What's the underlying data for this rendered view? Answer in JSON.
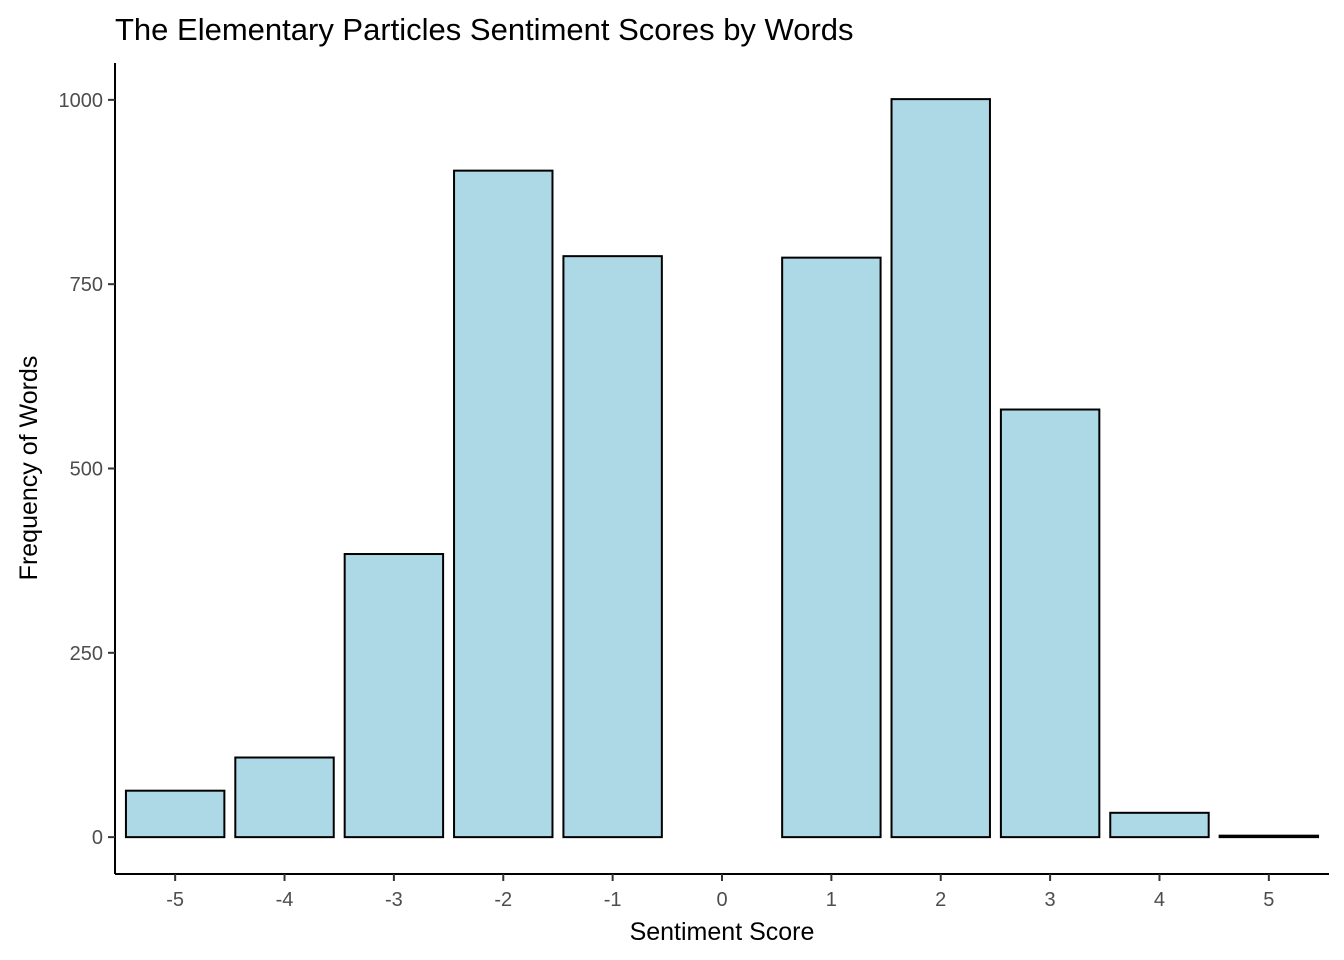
{
  "chart_data": {
    "type": "bar",
    "title": "The Elementary Particles Sentiment Scores by Words",
    "xlabel": "Sentiment Score",
    "ylabel": "Frequency of Words",
    "categories": [
      "-5",
      "-4",
      "-3",
      "-2",
      "-1",
      "0",
      "1",
      "2",
      "3",
      "4",
      "5"
    ],
    "x": [
      -5,
      -4,
      -3,
      -2,
      -1,
      0,
      1,
      2,
      3,
      4,
      5
    ],
    "values": [
      63,
      108,
      384,
      904,
      788,
      0,
      786,
      1001,
      580,
      33,
      2
    ],
    "xlim": [
      -5.55,
      5.55
    ],
    "ylim": [
      -50,
      1050
    ],
    "yticks": [
      0,
      250,
      500,
      750,
      1000
    ],
    "ytick_labels": [
      "0",
      "250",
      "500",
      "750",
      "1000"
    ],
    "xticks": [
      -5,
      -4,
      -3,
      -2,
      -1,
      0,
      1,
      2,
      3,
      4,
      5
    ],
    "xtick_labels": [
      "-5",
      "-4",
      "-3",
      "-2",
      "-1",
      "0",
      "1",
      "2",
      "3",
      "4",
      "5"
    ],
    "grid": false,
    "legend": "none",
    "colors": {
      "bar_fill": "#add8e6",
      "bar_outline": "#000000"
    }
  }
}
